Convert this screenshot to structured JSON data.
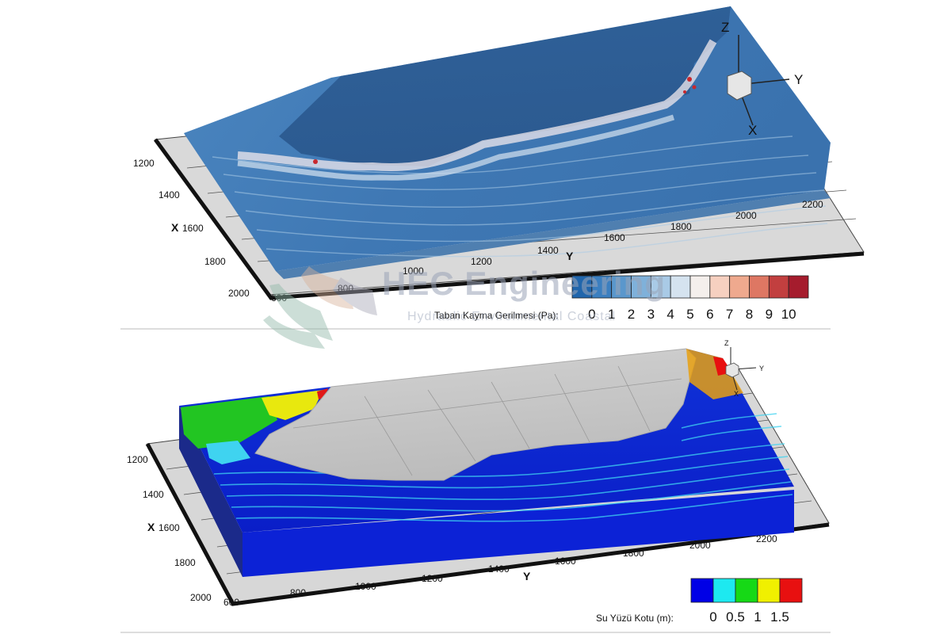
{
  "chart_data": [
    {
      "type": "heatmap",
      "panel": "top",
      "quantity": "Taban Kayma Gerilmesi (Pa):",
      "x_axis_name": "X",
      "y_axis_name": "Y",
      "x_ticks": [
        "1200",
        "1400",
        "1600",
        "1800",
        "2000"
      ],
      "y_ticks": [
        "600",
        "800",
        "1000",
        "1200",
        "1400",
        "1600",
        "1800",
        "2000",
        "2200"
      ],
      "legend_ticks": [
        "0",
        "1",
        "2",
        "3",
        "4",
        "5",
        "6",
        "7",
        "8",
        "9",
        "10"
      ],
      "legend_colors": [
        "#2166ac",
        "#3b7fc0",
        "#5a97cc",
        "#7fb1da",
        "#a9cae6",
        "#d5e3ef",
        "#f4efec",
        "#f6d0c0",
        "#efa98e",
        "#de7763",
        "#c23f3f",
        "#a51c2d"
      ],
      "colormap_range": [
        0,
        10
      ],
      "triad": [
        "Z",
        "Y",
        "X"
      ]
    },
    {
      "type": "heatmap",
      "panel": "bottom",
      "quantity": "Su Yüzü Kotu (m):",
      "x_axis_name": "X",
      "y_axis_name": "Y",
      "x_ticks": [
        "1200",
        "1400",
        "1600",
        "1800",
        "2000"
      ],
      "y_ticks": [
        "600",
        "800",
        "1000",
        "1200",
        "1400",
        "1600",
        "1800",
        "2000",
        "2200"
      ],
      "legend_ticks": [
        "0",
        "0.5",
        "1",
        "1.5"
      ],
      "legend_colors": [
        "#0000e6",
        "#1de9f0",
        "#16d916",
        "#f0f000",
        "#e81010"
      ],
      "colormap_range": [
        0,
        1.5
      ],
      "triad": [
        "Z",
        "Y",
        "X"
      ]
    }
  ],
  "watermark": {
    "title": "HEC Engineering",
    "subtitle": "Hydraulic Environmental Coastal"
  },
  "colors": {
    "shear_water": "#2f6199",
    "land_grey": "#c8c8c8",
    "frame_black": "#111111",
    "deep_water": "#0b1fd8"
  }
}
